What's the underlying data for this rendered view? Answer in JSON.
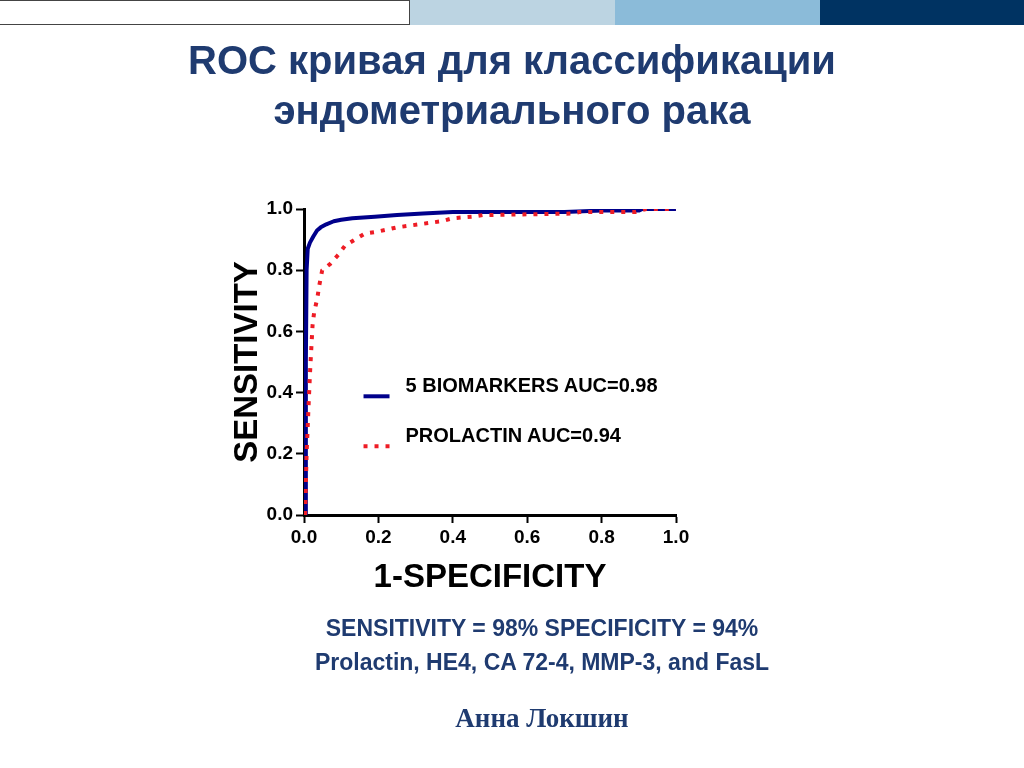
{
  "chart_data": {
    "type": "line",
    "title": "ROC кривая для классификации эндометриального рака",
    "xlabel": "1-SPECIFICITY",
    "ylabel": "SENSITIVITY",
    "annotations": [
      "SENSITIVITY = 98% SPECIFICITY = 94%",
      "Prolactin, HE4, CA 72-4, MMP-3, and FasL",
      "Анна Локшин"
    ],
    "xlim": [
      0,
      1
    ],
    "ylim": [
      0,
      1
    ],
    "xticks": [
      {
        "value": 0,
        "label": "0.0"
      },
      0.2,
      0.4,
      0.6,
      0.8,
      {
        "value": 1,
        "label": "1.0"
      }
    ],
    "yticks": [
      {
        "value": 0,
        "label": "0.0"
      },
      0.2,
      0.4,
      0.6,
      0.8,
      {
        "value": 1,
        "label": "1.0"
      }
    ],
    "legend": "bottom right",
    "marker": "none",
    "series": [
      {
        "name": "5 BIOMARKERS AUC=0.98",
        "color": "#00008b",
        "line_style": "solid",
        "x": [
          0.004,
          0.005,
          0.007,
          0.01,
          0.016,
          0.025,
          0.035,
          0.045,
          0.06,
          0.08,
          0.1,
          0.13,
          0.19,
          0.25,
          0.32,
          0.4,
          0.5,
          0.6,
          0.7,
          0.8,
          0.9,
          0.91,
          1
        ],
        "values": [
          0,
          0.5,
          0.8,
          0.87,
          0.89,
          0.91,
          0.93,
          0.94,
          0.95,
          0.96,
          0.965,
          0.97,
          0.975,
          0.98,
          0.985,
          0.99,
          0.99,
          0.99,
          0.99,
          0.995,
          0.995,
          1,
          1
        ]
      },
      {
        "name": "PROLACTIN AUC=0.94",
        "color": "#ee1c25",
        "line_style": "dotted",
        "x": [
          0.003,
          0.007,
          0.012,
          0.016,
          0.019,
          0.023,
          0.027,
          0.036,
          0.041,
          0.049,
          0.07,
          0.092,
          0.11,
          0.137,
          0.164,
          0.194,
          0.25,
          0.31,
          0.37,
          0.4,
          0.455,
          0.48,
          0.72,
          0.74,
          0.89,
          0.92,
          1
        ],
        "values": [
          0,
          0.2,
          0.35,
          0.46,
          0.53,
          0.62,
          0.66,
          0.71,
          0.75,
          0.8,
          0.82,
          0.85,
          0.88,
          0.9,
          0.92,
          0.925,
          0.94,
          0.95,
          0.96,
          0.97,
          0.975,
          0.98,
          0.985,
          0.99,
          0.99,
          1,
          1
        ]
      }
    ]
  }
}
